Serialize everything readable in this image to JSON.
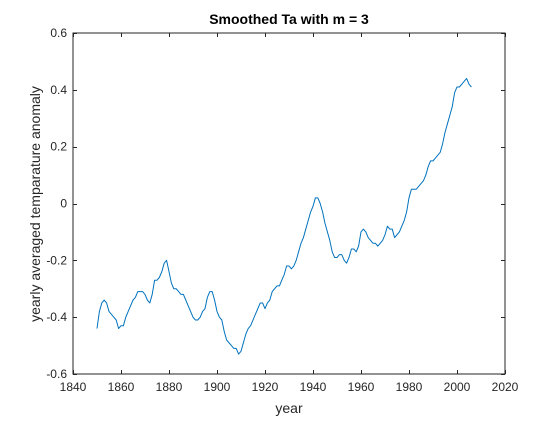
{
  "chart_data": {
    "type": "line",
    "title": "Smoothed Ta with m = 3",
    "xlabel": "year",
    "ylabel": "yearly averaged temparature anomaly",
    "xlim": [
      1840,
      2020
    ],
    "ylim": [
      -0.6,
      0.6
    ],
    "xticks": [
      1840,
      1860,
      1880,
      1900,
      1920,
      1940,
      1960,
      1980,
      2000,
      2020
    ],
    "yticks": [
      -0.6,
      -0.4,
      -0.2,
      0,
      0.2,
      0.4,
      0.6
    ],
    "grid": false,
    "legend": null,
    "line_color": "#0072BD",
    "series": [
      {
        "x": [
          1850,
          1851,
          1852,
          1853,
          1854,
          1855,
          1856,
          1857,
          1858,
          1859,
          1860,
          1861,
          1862,
          1863,
          1864,
          1865,
          1866,
          1867,
          1868,
          1869,
          1870,
          1871,
          1872,
          1873,
          1874,
          1875,
          1876,
          1877,
          1878,
          1879,
          1880,
          1881,
          1882,
          1883,
          1884,
          1885,
          1886,
          1887,
          1888,
          1889,
          1890,
          1891,
          1892,
          1893,
          1894,
          1895,
          1896,
          1897,
          1898,
          1899,
          1900,
          1901,
          1902,
          1903,
          1904,
          1905,
          1906,
          1907,
          1908,
          1909,
          1910,
          1911,
          1912,
          1913,
          1914,
          1915,
          1916,
          1917,
          1918,
          1919,
          1920,
          1921,
          1922,
          1923,
          1924,
          1925,
          1926,
          1927,
          1928,
          1929,
          1930,
          1931,
          1932,
          1933,
          1934,
          1935,
          1936,
          1937,
          1938,
          1939,
          1940,
          1941,
          1942,
          1943,
          1944,
          1945,
          1946,
          1947,
          1948,
          1949,
          1950,
          1951,
          1952,
          1953,
          1954,
          1955,
          1956,
          1957,
          1958,
          1959,
          1960,
          1961,
          1962,
          1963,
          1964,
          1965,
          1966,
          1967,
          1968,
          1969,
          1970,
          1971,
          1972,
          1973,
          1974,
          1975,
          1976,
          1977,
          1978,
          1979,
          1980,
          1981,
          1982,
          1983,
          1984,
          1985,
          1986,
          1987,
          1988,
          1989,
          1990,
          1991,
          1992,
          1993,
          1994,
          1995,
          1996,
          1997,
          1998,
          1999,
          2000,
          2001,
          2002,
          2003,
          2004,
          2005,
          2006
        ],
        "y": [
          -0.44,
          -0.38,
          -0.35,
          -0.34,
          -0.35,
          -0.38,
          -0.39,
          -0.4,
          -0.41,
          -0.44,
          -0.43,
          -0.43,
          -0.4,
          -0.38,
          -0.36,
          -0.34,
          -0.33,
          -0.31,
          -0.31,
          -0.31,
          -0.32,
          -0.34,
          -0.35,
          -0.32,
          -0.27,
          -0.27,
          -0.26,
          -0.24,
          -0.21,
          -0.2,
          -0.24,
          -0.28,
          -0.3,
          -0.3,
          -0.31,
          -0.32,
          -0.32,
          -0.34,
          -0.36,
          -0.38,
          -0.4,
          -0.41,
          -0.41,
          -0.4,
          -0.38,
          -0.37,
          -0.33,
          -0.31,
          -0.31,
          -0.34,
          -0.38,
          -0.4,
          -0.41,
          -0.45,
          -0.48,
          -0.49,
          -0.5,
          -0.51,
          -0.51,
          -0.53,
          -0.52,
          -0.49,
          -0.46,
          -0.44,
          -0.43,
          -0.41,
          -0.39,
          -0.37,
          -0.35,
          -0.35,
          -0.37,
          -0.35,
          -0.34,
          -0.31,
          -0.3,
          -0.29,
          -0.29,
          -0.27,
          -0.25,
          -0.22,
          -0.22,
          -0.23,
          -0.22,
          -0.2,
          -0.17,
          -0.14,
          -0.12,
          -0.09,
          -0.06,
          -0.03,
          -0.01,
          0.02,
          0.02,
          0.0,
          -0.03,
          -0.07,
          -0.1,
          -0.13,
          -0.17,
          -0.19,
          -0.19,
          -0.18,
          -0.18,
          -0.2,
          -0.21,
          -0.19,
          -0.16,
          -0.16,
          -0.17,
          -0.15,
          -0.1,
          -0.09,
          -0.1,
          -0.12,
          -0.13,
          -0.14,
          -0.14,
          -0.15,
          -0.14,
          -0.13,
          -0.11,
          -0.08,
          -0.09,
          -0.09,
          -0.12,
          -0.11,
          -0.1,
          -0.08,
          -0.06,
          -0.03,
          0.02,
          0.05,
          0.05,
          0.05,
          0.06,
          0.07,
          0.08,
          0.1,
          0.13,
          0.15,
          0.15,
          0.16,
          0.17,
          0.18,
          0.21,
          0.25,
          0.28,
          0.31,
          0.34,
          0.39,
          0.41,
          0.41,
          0.42,
          0.43,
          0.44,
          0.42,
          0.41
        ]
      }
    ]
  }
}
